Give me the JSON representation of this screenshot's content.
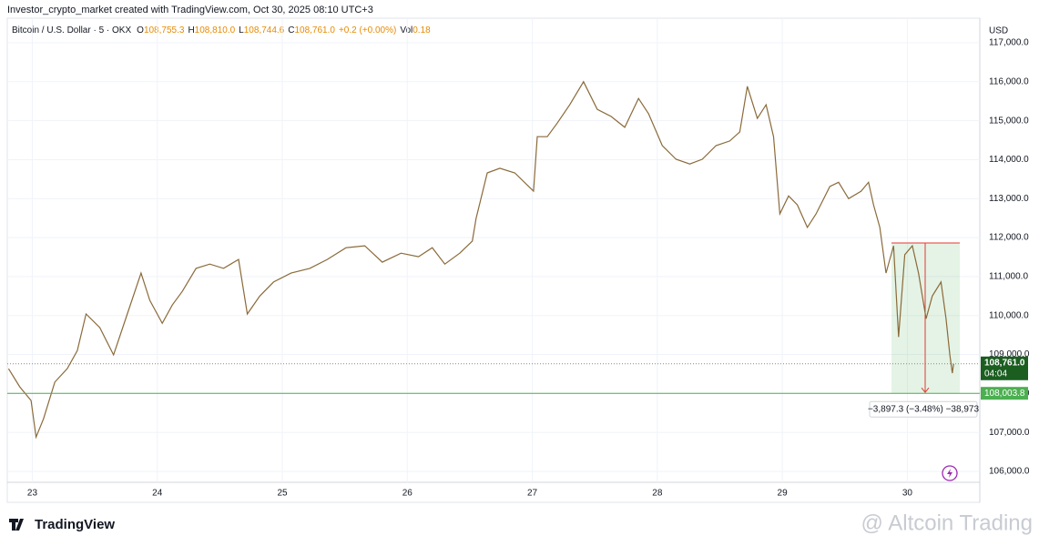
{
  "chart_data": {
    "type": "line",
    "title": "Investor_crypto_market created with TradingView.com, Oct 30, 2025 08:10 UTC+3",
    "symbol": "Bitcoin / U.S. Dollar · 5 · OKX",
    "ohlc": [
      {
        "name": "O",
        "value": 108755.3,
        "label": "108,755.3"
      },
      {
        "name": "H",
        "value": 108810.0,
        "label": "108,810.0"
      },
      {
        "name": "L",
        "value": 108744.6,
        "label": "108,744.6"
      },
      {
        "name": "C",
        "value": 108761.0,
        "label": "108,761.0"
      }
    ],
    "change": "+0.2 (+0.00%)",
    "volume_name": "Vol",
    "volume": 0.18,
    "currency": "USD",
    "xlim": [
      22.8,
      30.58
    ],
    "xticks": [
      23,
      24,
      25,
      26,
      27,
      28,
      29,
      30
    ],
    "ylim": [
      105720,
      117630
    ],
    "yticks": [
      {
        "value": 106000,
        "label": "106,000.0"
      },
      {
        "value": 107000,
        "label": "107,000.0"
      },
      {
        "value": 108000,
        "label": "108,000.0"
      },
      {
        "value": 109000,
        "label": "109,000.0"
      },
      {
        "value": 110000,
        "label": "110,000.0"
      },
      {
        "value": 111000,
        "label": "111,000.0"
      },
      {
        "value": 112000,
        "label": "112,000.0"
      },
      {
        "value": 113000,
        "label": "113,000.0"
      },
      {
        "value": 114000,
        "label": "114,000.0"
      },
      {
        "value": 115000,
        "label": "115,000.0"
      },
      {
        "value": 116000,
        "label": "116,000.0"
      },
      {
        "value": 117000,
        "label": "117,000.0"
      }
    ],
    "grid": true,
    "series": [
      {
        "color": "#8a6a3a",
        "x": [
          22.81,
          22.9,
          22.99,
          23.03,
          23.09,
          23.18,
          23.28,
          23.36,
          23.43,
          23.54,
          23.65,
          23.76,
          23.87,
          23.94,
          24.04,
          24.12,
          24.2,
          24.31,
          24.42,
          24.53,
          24.65,
          24.72,
          24.82,
          24.93,
          25.07,
          25.22,
          25.36,
          25.51,
          25.66,
          25.8,
          25.95,
          26.09,
          26.2,
          26.3,
          26.42,
          26.52,
          26.55,
          26.64,
          26.74,
          26.86,
          27.01,
          27.04,
          27.12,
          27.2,
          27.3,
          27.41,
          27.52,
          27.63,
          27.74,
          27.85,
          27.93,
          28.04,
          28.15,
          28.26,
          28.36,
          28.47,
          28.58,
          28.66,
          28.72,
          28.8,
          28.87,
          28.93,
          28.98,
          29.05,
          29.12,
          29.2,
          29.27,
          29.38,
          29.45,
          29.53,
          29.63,
          29.69,
          29.73,
          29.78,
          29.83,
          29.89,
          29.93,
          29.98,
          30.04,
          30.09,
          30.15,
          30.2,
          30.27,
          30.31,
          30.34,
          30.36,
          30.37
        ],
        "values": [
          108635,
          108170,
          107820,
          106880,
          107350,
          108290,
          108640,
          109100,
          110040,
          109690,
          108990,
          110040,
          111090,
          110390,
          109800,
          110270,
          110620,
          111210,
          111320,
          111210,
          111440,
          110040,
          110500,
          110860,
          111090,
          111210,
          111440,
          111740,
          111790,
          111370,
          111600,
          111510,
          111740,
          111320,
          111600,
          111910,
          112490,
          113660,
          113780,
          113660,
          113190,
          114590,
          114590,
          114940,
          115410,
          116000,
          115290,
          115110,
          114830,
          115570,
          115180,
          114360,
          114010,
          113890,
          114010,
          114360,
          114480,
          114710,
          115880,
          115060,
          115410,
          114590,
          112610,
          113070,
          112840,
          112260,
          112610,
          113310,
          113420,
          113000,
          113190,
          113420,
          112840,
          112260,
          111090,
          111790,
          109450,
          111560,
          111790,
          111090,
          109920,
          110500,
          110860,
          109920,
          108990,
          108520,
          108761
        ]
      }
    ],
    "last_price": {
      "value": 108761.0,
      "label": "108,761.0"
    },
    "countdown": "04:04",
    "level": {
      "value": 108003.8,
      "label": "108,003.8",
      "color": "#4caf50"
    },
    "measure_label": "−3,897.3 (−3.48%) −38,973",
    "footer_logo": "TradingView",
    "watermark": "@ Altcoin Trading"
  }
}
